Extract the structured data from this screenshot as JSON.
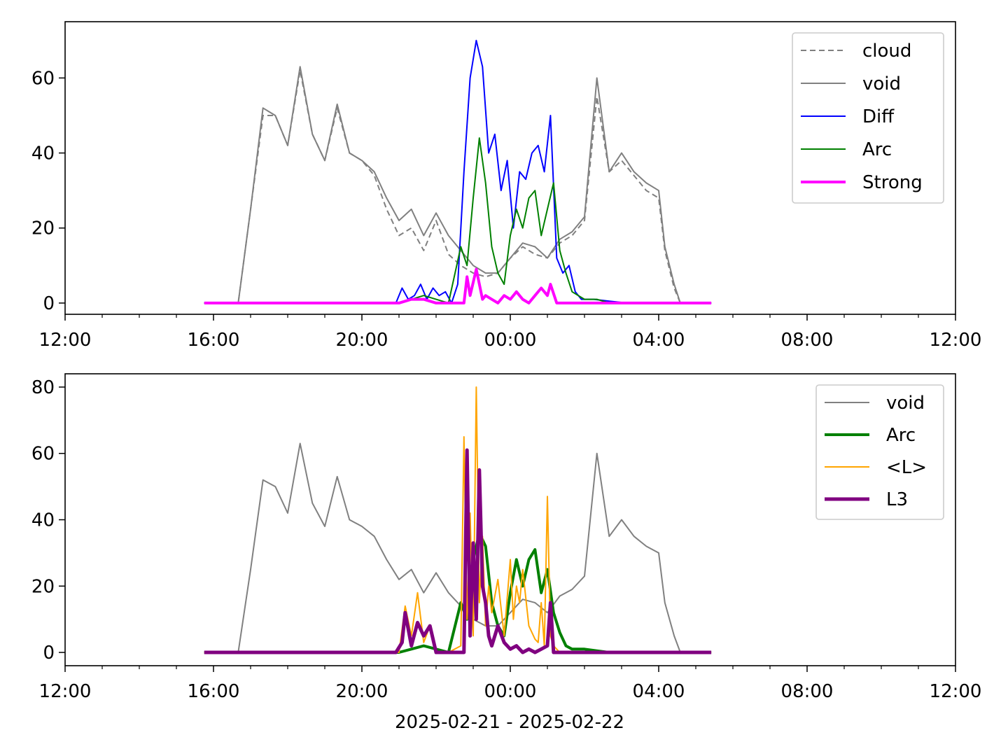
{
  "chart_data": [
    {
      "type": "line",
      "xlim": [
        "12:00",
        "12:00"
      ],
      "ylim": [
        -3,
        75
      ],
      "x_ticks": [
        "12:00",
        "16:00",
        "20:00",
        "00:00",
        "04:00",
        "08:00",
        "12:00"
      ],
      "y_ticks": [
        "0",
        "20",
        "40",
        "60"
      ],
      "legend_position": "top-right",
      "legend": [
        "cloud",
        "void",
        "Diff",
        "Arc",
        "Strong"
      ],
      "series": [
        {
          "name": "cloud",
          "color": "#808080",
          "style": "dashed",
          "x": [
            "15:45",
            "16:40",
            "17:00",
            "17:20",
            "17:40",
            "18:00",
            "18:20",
            "18:40",
            "19:00",
            "19:20",
            "19:40",
            "20:00",
            "20:20",
            "20:40",
            "21:00",
            "21:20",
            "21:40",
            "22:00",
            "22:20",
            "22:40",
            "23:00",
            "23:20",
            "23:40",
            "00:00",
            "00:20",
            "00:40",
            "01:00",
            "01:20",
            "01:40",
            "02:00",
            "02:20",
            "02:40",
            "03:00",
            "03:20",
            "03:40",
            "04:00",
            "04:10",
            "04:25",
            "04:35",
            "05:25"
          ],
          "y": [
            0,
            0,
            25,
            50,
            50,
            42,
            62,
            45,
            38,
            52,
            40,
            38,
            34,
            25,
            18,
            20,
            14,
            22,
            13,
            10,
            8,
            7,
            8,
            12,
            15,
            13,
            12,
            16,
            18,
            22,
            55,
            35,
            38,
            34,
            30,
            28,
            14,
            4,
            0,
            0
          ]
        },
        {
          "name": "void",
          "color": "#808080",
          "style": "solid",
          "x": [
            "15:45",
            "16:40",
            "17:00",
            "17:20",
            "17:40",
            "18:00",
            "18:20",
            "18:40",
            "19:00",
            "19:20",
            "19:40",
            "20:00",
            "20:20",
            "20:40",
            "21:00",
            "21:20",
            "21:40",
            "22:00",
            "22:20",
            "22:40",
            "23:00",
            "23:20",
            "23:40",
            "00:00",
            "00:20",
            "00:40",
            "01:00",
            "01:20",
            "01:40",
            "02:00",
            "02:20",
            "02:40",
            "03:00",
            "03:20",
            "03:40",
            "04:00",
            "04:10",
            "04:25",
            "04:35",
            "05:25"
          ],
          "y": [
            0,
            0,
            25,
            52,
            50,
            42,
            63,
            45,
            38,
            53,
            40,
            38,
            35,
            28,
            22,
            25,
            18,
            24,
            18,
            14,
            10,
            8,
            8,
            12,
            16,
            15,
            12,
            17,
            19,
            23,
            60,
            35,
            40,
            35,
            32,
            30,
            15,
            5,
            0,
            0
          ]
        },
        {
          "name": "Diff",
          "color": "#0000ff",
          "style": "solid",
          "x": [
            "15:45",
            "20:55",
            "21:05",
            "21:15",
            "21:25",
            "21:35",
            "21:45",
            "21:55",
            "22:05",
            "22:15",
            "22:25",
            "22:35",
            "22:45",
            "22:55",
            "23:05",
            "23:15",
            "23:25",
            "23:35",
            "23:45",
            "23:55",
            "00:05",
            "00:15",
            "00:25",
            "00:35",
            "00:45",
            "00:55",
            "01:05",
            "01:15",
            "01:25",
            "01:35",
            "01:45",
            "01:55",
            "02:15",
            "02:40",
            "03:10",
            "05:25"
          ],
          "y": [
            0,
            0,
            4,
            1,
            2,
            5,
            1,
            4,
            2,
            3,
            0,
            5,
            35,
            60,
            70,
            63,
            40,
            45,
            30,
            38,
            20,
            35,
            33,
            40,
            42,
            35,
            50,
            12,
            8,
            10,
            3,
            1,
            1,
            0.5,
            0,
            0
          ]
        },
        {
          "name": "Arc",
          "color": "#008000",
          "style": "solid",
          "x": [
            "15:45",
            "21:00",
            "21:20",
            "21:40",
            "22:00",
            "22:20",
            "22:40",
            "22:50",
            "23:00",
            "23:10",
            "23:20",
            "23:30",
            "23:40",
            "23:50",
            "00:00",
            "00:10",
            "00:20",
            "00:30",
            "00:40",
            "00:50",
            "01:00",
            "01:10",
            "01:20",
            "01:30",
            "01:40",
            "02:00",
            "02:20",
            "02:40",
            "05:25"
          ],
          "y": [
            0,
            0,
            1,
            2,
            1,
            0,
            15,
            10,
            28,
            44,
            32,
            15,
            8,
            5,
            18,
            25,
            20,
            28,
            30,
            18,
            25,
            32,
            14,
            8,
            3,
            1,
            1,
            0,
            0
          ]
        },
        {
          "name": "Strong",
          "color": "#ff00ff",
          "style": "solid",
          "x": [
            "15:45",
            "21:00",
            "21:20",
            "21:40",
            "22:00",
            "22:20",
            "22:45",
            "22:50",
            "22:55",
            "23:05",
            "23:15",
            "23:20",
            "23:30",
            "23:40",
            "23:50",
            "00:00",
            "00:10",
            "00:20",
            "00:30",
            "00:40",
            "00:50",
            "01:00",
            "01:05",
            "01:15",
            "01:30",
            "05:25"
          ],
          "y": [
            0,
            0,
            1,
            1,
            0,
            0,
            0,
            7,
            2,
            9,
            1,
            2,
            1,
            0,
            2,
            1,
            3,
            1,
            0,
            2,
            4,
            2,
            5,
            0,
            0,
            0
          ]
        }
      ]
    },
    {
      "type": "line",
      "xlim": [
        "12:00",
        "12:00"
      ],
      "ylim": [
        -4,
        84
      ],
      "x_ticks": [
        "12:00",
        "16:00",
        "20:00",
        "00:00",
        "04:00",
        "08:00",
        "12:00"
      ],
      "y_ticks": [
        "0",
        "20",
        "40",
        "60",
        "80"
      ],
      "xlabel": "2025-02-21 - 2025-02-22",
      "legend_position": "top-right",
      "legend": [
        "void",
        "Arc",
        "<L>",
        "L3"
      ],
      "series": [
        {
          "name": "void",
          "color": "#808080",
          "style": "solid",
          "x": [
            "15:45",
            "16:40",
            "17:00",
            "17:20",
            "17:40",
            "18:00",
            "18:20",
            "18:40",
            "19:00",
            "19:20",
            "19:40",
            "20:00",
            "20:20",
            "20:40",
            "21:00",
            "21:20",
            "21:40",
            "22:00",
            "22:20",
            "22:40",
            "23:00",
            "23:20",
            "23:40",
            "00:00",
            "00:20",
            "00:40",
            "01:00",
            "01:20",
            "01:40",
            "02:00",
            "02:20",
            "02:40",
            "03:00",
            "03:20",
            "03:40",
            "04:00",
            "04:10",
            "04:25",
            "04:35",
            "05:25"
          ],
          "y": [
            0,
            0,
            25,
            52,
            50,
            42,
            63,
            45,
            38,
            53,
            40,
            38,
            35,
            28,
            22,
            25,
            18,
            24,
            18,
            14,
            10,
            8,
            8,
            12,
            16,
            15,
            12,
            17,
            19,
            23,
            60,
            35,
            40,
            35,
            32,
            30,
            15,
            5,
            0,
            0
          ]
        },
        {
          "name": "Arc",
          "color": "#008000",
          "style": "solid",
          "x": [
            "15:45",
            "21:00",
            "21:20",
            "21:40",
            "22:00",
            "22:20",
            "22:40",
            "22:50",
            "23:00",
            "23:10",
            "23:20",
            "23:30",
            "23:40",
            "23:50",
            "00:00",
            "00:10",
            "00:20",
            "00:30",
            "00:40",
            "00:50",
            "01:00",
            "01:10",
            "01:20",
            "01:30",
            "01:40",
            "02:00",
            "02:20",
            "02:40",
            "05:25"
          ],
          "y": [
            0,
            0,
            1,
            2,
            1,
            0,
            15,
            10,
            28,
            36,
            32,
            15,
            8,
            5,
            18,
            28,
            20,
            28,
            31,
            18,
            25,
            12,
            6,
            2,
            1,
            1,
            0.5,
            0,
            0
          ]
        },
        {
          "name": "<L>",
          "color": "#ffa500",
          "style": "solid",
          "x": [
            "15:45",
            "21:00",
            "21:10",
            "21:20",
            "21:30",
            "21:40",
            "21:50",
            "22:00",
            "22:20",
            "22:40",
            "22:45",
            "22:50",
            "22:55",
            "23:00",
            "23:05",
            "23:10",
            "23:15",
            "23:20",
            "23:25",
            "23:30",
            "23:40",
            "23:50",
            "00:00",
            "00:05",
            "00:10",
            "00:15",
            "00:20",
            "00:30",
            "00:40",
            "00:45",
            "00:50",
            "00:55",
            "01:00",
            "01:05",
            "01:10",
            "01:20",
            "05:25"
          ],
          "y": [
            0,
            0,
            14,
            5,
            18,
            3,
            8,
            0,
            0,
            2,
            65,
            10,
            42,
            5,
            80,
            15,
            35,
            8,
            20,
            12,
            22,
            5,
            28,
            10,
            20,
            15,
            25,
            8,
            4,
            3,
            15,
            2,
            47,
            5,
            2,
            0,
            0
          ]
        },
        {
          "name": "L3",
          "color": "#800080",
          "style": "solid",
          "x": [
            "15:45",
            "20:55",
            "21:05",
            "21:10",
            "21:20",
            "21:30",
            "21:40",
            "21:50",
            "22:00",
            "22:30",
            "22:45",
            "22:50",
            "22:55",
            "23:00",
            "23:05",
            "23:10",
            "23:15",
            "23:20",
            "23:25",
            "23:30",
            "23:40",
            "23:50",
            "00:00",
            "00:10",
            "00:20",
            "00:30",
            "00:40",
            "00:50",
            "01:00",
            "01:05",
            "01:10",
            "01:20",
            "05:25"
          ],
          "y": [
            0,
            0,
            3,
            12,
            2,
            9,
            5,
            8,
            0,
            0,
            0,
            61,
            5,
            33,
            10,
            55,
            20,
            15,
            5,
            2,
            8,
            3,
            1,
            2,
            0,
            1,
            0,
            1,
            2,
            15,
            0,
            0,
            0
          ]
        }
      ]
    }
  ]
}
